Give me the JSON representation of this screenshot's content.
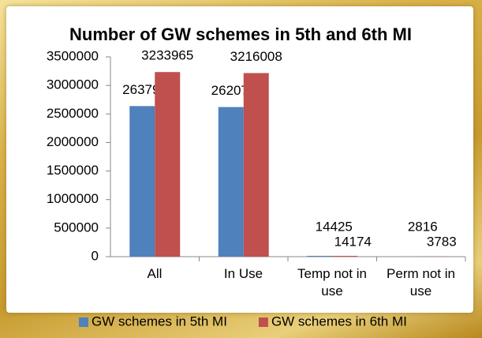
{
  "chart_data": {
    "type": "bar",
    "title": "Number of GW schemes in 5th and 6th MI",
    "categories": [
      "All",
      "In Use",
      "Temp not in use",
      "Perm not in use"
    ],
    "series": [
      {
        "name": "GW schemes in 5th MI",
        "color": "#4f81bd",
        "values": [
          2637994,
          2620753,
          14425,
          2816
        ]
      },
      {
        "name": "GW schemes in 6th MI",
        "color": "#c0504d",
        "values": [
          3233965,
          3216008,
          14174,
          3783
        ]
      }
    ],
    "ylim": [
      0,
      3500000
    ],
    "yticks": [
      0,
      500000,
      1000000,
      1500000,
      2000000,
      2500000,
      3000000,
      3500000
    ],
    "grid": false,
    "legend": "bottom"
  }
}
